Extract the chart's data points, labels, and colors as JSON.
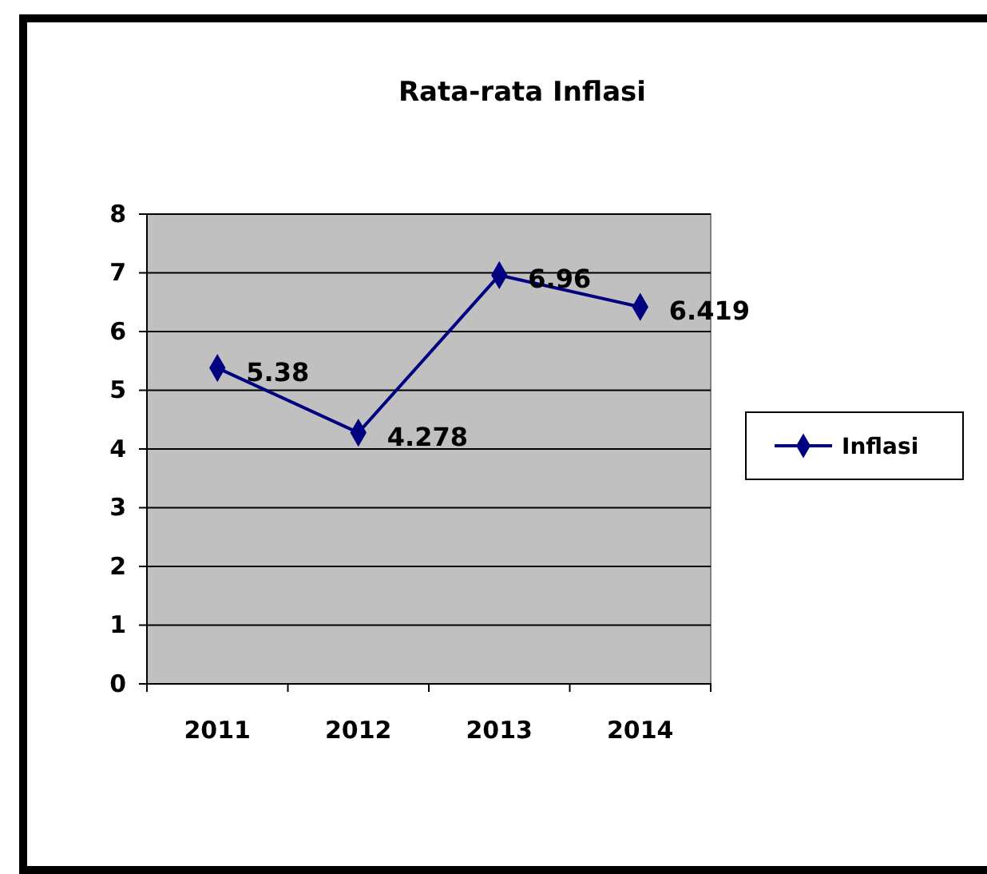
{
  "chart_data": {
    "type": "line",
    "title": "Rata-rata Inflasi",
    "categories": [
      "2011",
      "2012",
      "2013",
      "2014"
    ],
    "series": [
      {
        "name": "Inflasi",
        "color": "#000080",
        "values": [
          5.38,
          4.278,
          6.96,
          6.419
        ]
      }
    ],
    "ylim": [
      0,
      8
    ],
    "yticks": [
      0,
      1,
      2,
      3,
      4,
      5,
      6,
      7,
      8
    ],
    "grid": "y",
    "legend": "right",
    "marker": "diamond",
    "data_labels": true
  }
}
